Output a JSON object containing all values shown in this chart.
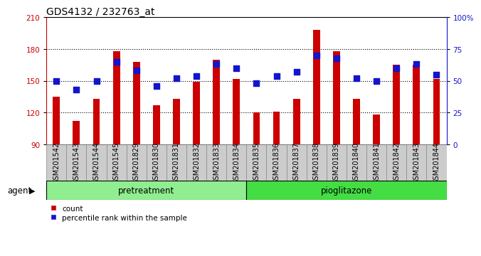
{
  "title": "GDS4132 / 232763_at",
  "samples": [
    "GSM201542",
    "GSM201543",
    "GSM201544",
    "GSM201545",
    "GSM201829",
    "GSM201830",
    "GSM201831",
    "GSM201832",
    "GSM201833",
    "GSM201834",
    "GSM201835",
    "GSM201836",
    "GSM201837",
    "GSM201838",
    "GSM201839",
    "GSM201840",
    "GSM201841",
    "GSM201842",
    "GSM201843",
    "GSM201844"
  ],
  "count_values": [
    135,
    112,
    133,
    178,
    168,
    127,
    133,
    149,
    170,
    152,
    120,
    121,
    133,
    198,
    178,
    133,
    118,
    165,
    165,
    152
  ],
  "percentile_values": [
    50,
    43,
    50,
    65,
    58,
    46,
    52,
    54,
    63,
    60,
    48,
    54,
    57,
    70,
    68,
    52,
    50,
    60,
    63,
    55
  ],
  "bar_color": "#cc0000",
  "dot_color": "#1414cc",
  "ylim_left": [
    90,
    210
  ],
  "ylim_right": [
    0,
    100
  ],
  "yticks_left": [
    90,
    120,
    150,
    180,
    210
  ],
  "yticks_right": [
    0,
    25,
    50,
    75,
    100
  ],
  "yticklabels_right": [
    "0",
    "25",
    "50",
    "75",
    "100%"
  ],
  "grid_values": [
    120,
    150,
    180
  ],
  "pretreatment_label": "pretreatment",
  "pioglitazone_label": "pioglitazone",
  "n_pretreatment": 10,
  "n_pioglitazone": 10,
  "pretreatment_color": "#90ee90",
  "pioglitazone_color": "#44dd44",
  "agent_label": "agent",
  "legend_count_label": "count",
  "legend_percentile_label": "percentile rank within the sample",
  "bar_width": 0.35,
  "dot_size": 30,
  "plot_bg_color": "#ffffff",
  "tick_bg_color": "#cccccc",
  "title_fontsize": 10,
  "axis_tick_fontsize": 7.5,
  "sample_fontsize": 7
}
